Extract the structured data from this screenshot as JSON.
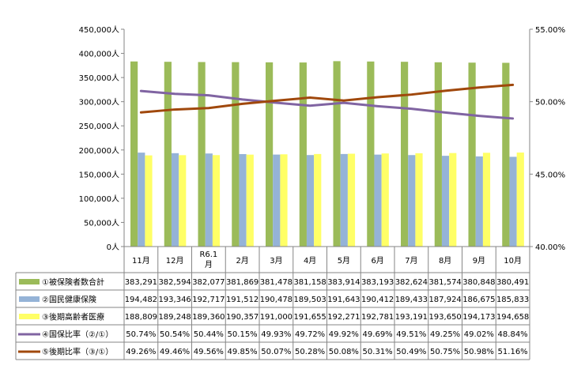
{
  "chart_data": {
    "type": "bar+line",
    "categories": [
      "11月",
      "12月",
      "R6.1月",
      "2月",
      "3月",
      "4月",
      "5月",
      "6月",
      "7月",
      "8月",
      "9月",
      "10月"
    ],
    "category_lines": [
      [
        "11月"
      ],
      [
        "12月"
      ],
      [
        "R6.1",
        "月"
      ],
      [
        "2月"
      ],
      [
        "3月"
      ],
      [
        "4月"
      ],
      [
        "5月"
      ],
      [
        "6月"
      ],
      [
        "7月"
      ],
      [
        "8月"
      ],
      [
        "9月"
      ],
      [
        "10月"
      ]
    ],
    "left_axis": {
      "ylim": [
        0,
        450000
      ],
      "ticks": [
        "0人",
        "50,000人",
        "100,000人",
        "150,000人",
        "200,000人",
        "250,000人",
        "300,000人",
        "350,000人",
        "400,000人",
        "450,000人"
      ]
    },
    "right_axis": {
      "ylim": [
        40,
        55
      ],
      "ticks": [
        "40.00%",
        "45.00%",
        "50.00%",
        "55.00%"
      ]
    },
    "series": [
      {
        "name": "①被保険者数合計",
        "kind": "bar",
        "axis": "left",
        "color": "#9BBB59",
        "values": [
          383291,
          382594,
          382077,
          381869,
          381478,
          381158,
          383914,
          383193,
          382624,
          381574,
          380848,
          380491
        ],
        "labels": [
          "383,291",
          "382,594",
          "382,077",
          "381,869",
          "381,478",
          "381,158",
          "383,914",
          "383,193",
          "382,624",
          "381,574",
          "380,848",
          "380,491"
        ]
      },
      {
        "name": "②国民健康保険",
        "kind": "bar",
        "axis": "left",
        "color": "#95B3D7",
        "values": [
          194482,
          193346,
          192717,
          191512,
          190478,
          189503,
          191643,
          190412,
          189433,
          187924,
          186675,
          185833
        ],
        "labels": [
          "194,482",
          "193,346",
          "192,717",
          "191,512",
          "190,478",
          "189,503",
          "191,643",
          "190,412",
          "189,433",
          "187,924",
          "186,675",
          "185,833"
        ]
      },
      {
        "name": "③後期高齢者医療",
        "kind": "bar",
        "axis": "left",
        "color": "#FFFF66",
        "values": [
          188809,
          189248,
          189360,
          190357,
          191000,
          191655,
          192271,
          192781,
          193191,
          193650,
          194173,
          194658
        ],
        "labels": [
          "188,809",
          "189,248",
          "189,360",
          "190,357",
          "191,000",
          "191,655",
          "192,271",
          "192,781",
          "193,191",
          "193,650",
          "194,173",
          "194,658"
        ]
      },
      {
        "name": "④国保比率（②/①）",
        "kind": "line",
        "axis": "right",
        "color": "#8064A2",
        "values": [
          50.74,
          50.54,
          50.44,
          50.15,
          49.93,
          49.72,
          49.92,
          49.69,
          49.51,
          49.25,
          49.02,
          48.84
        ],
        "labels": [
          "50.74%",
          "50.54%",
          "50.44%",
          "50.15%",
          "49.93%",
          "49.72%",
          "49.92%",
          "49.69%",
          "49.51%",
          "49.25%",
          "49.02%",
          "48.84%"
        ]
      },
      {
        "name": "⑤後期比率（③/①）",
        "kind": "line",
        "axis": "right",
        "color": "#A0480C",
        "values": [
          49.26,
          49.46,
          49.56,
          49.85,
          50.07,
          50.28,
          50.08,
          50.31,
          50.49,
          50.75,
          50.98,
          51.16
        ],
        "labels": [
          "49.26%",
          "49.46%",
          "49.56%",
          "49.85%",
          "50.07%",
          "50.28%",
          "50.08%",
          "50.31%",
          "50.49%",
          "50.75%",
          "50.98%",
          "51.16%"
        ]
      }
    ],
    "legend": "data-table-left",
    "grid": false
  }
}
